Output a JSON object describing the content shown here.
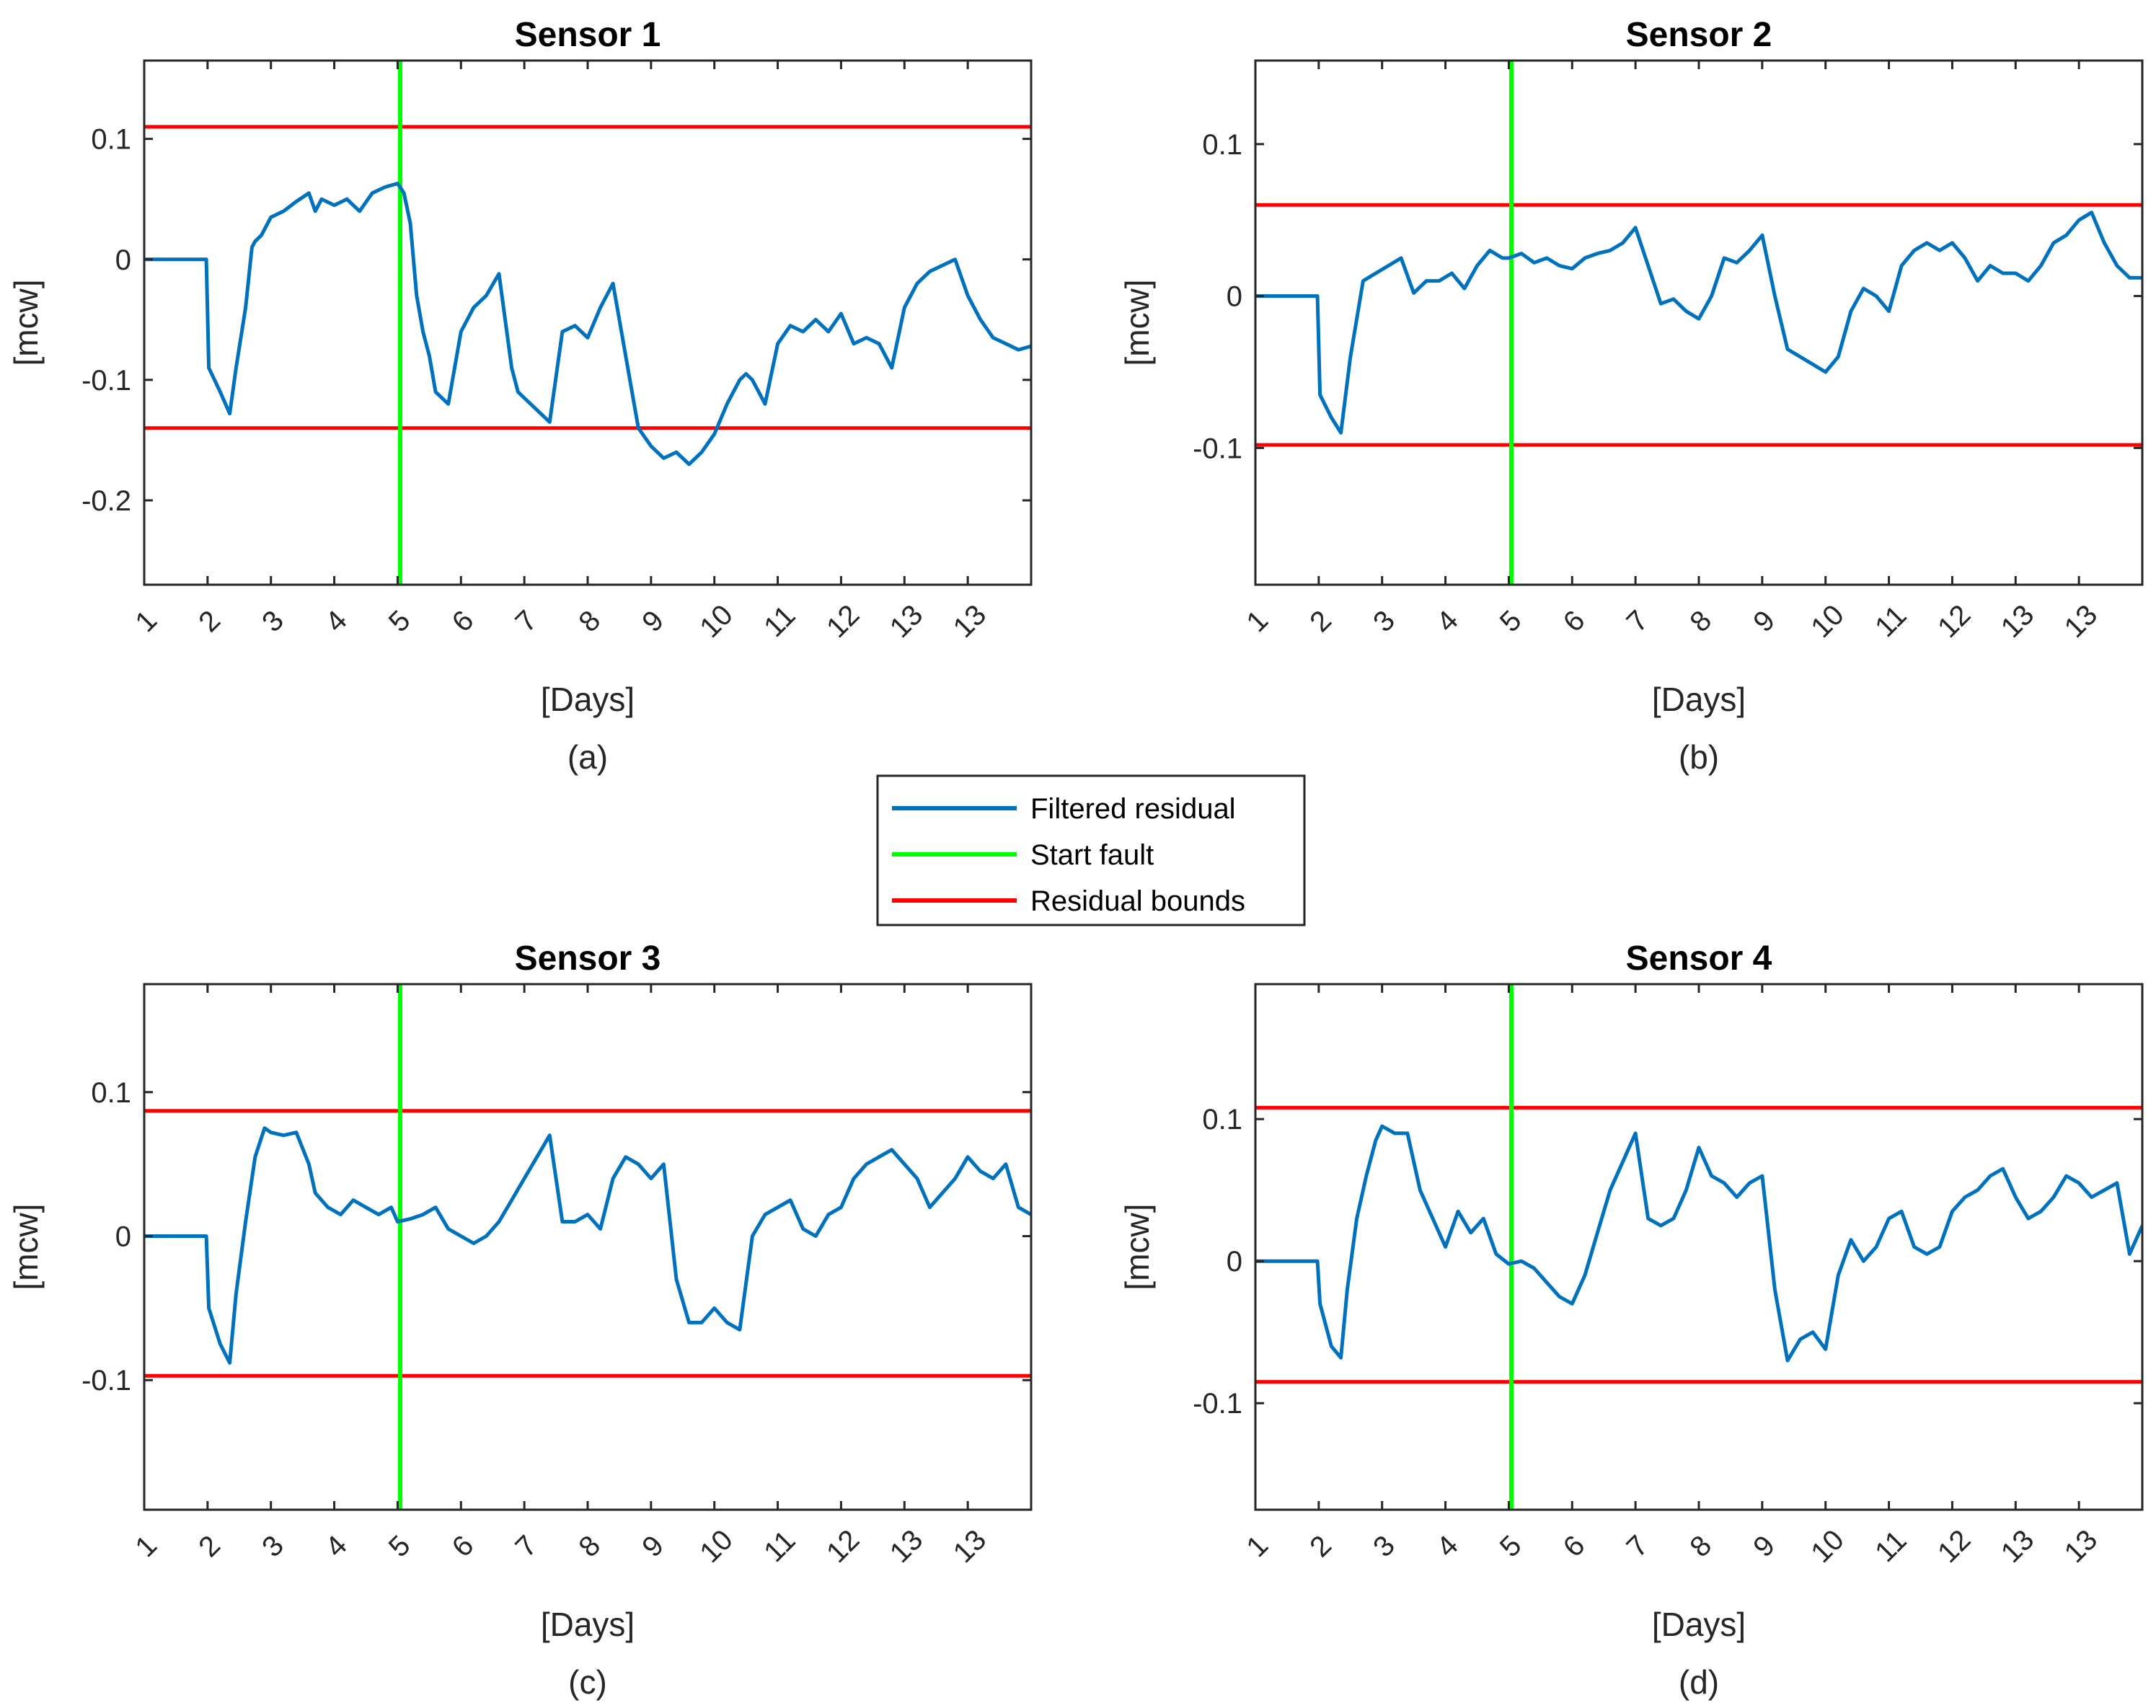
{
  "legend": {
    "entries": [
      {
        "label": "Filtered residual",
        "color": "#0072BD"
      },
      {
        "label": "Start fault",
        "color": "#00FF00"
      },
      {
        "label": "Residual bounds",
        "color": "#FF0000"
      }
    ]
  },
  "chart_data": [
    {
      "type": "line",
      "title": "Sensor 1",
      "caption": "(a)",
      "xlabel": "[Days]",
      "ylabel": "[mcw]",
      "xlim": [
        0,
        14
      ],
      "ylim": [
        -0.27,
        0.165
      ],
      "xtick_labels": [
        "1",
        "2",
        "3",
        "4",
        "5",
        "6",
        "7",
        "8",
        "9",
        "10",
        "11",
        "12",
        "13",
        "13"
      ],
      "yticks": [
        -0.2,
        -0.1,
        0,
        0.1
      ],
      "ytick_labels": [
        "-0.2",
        "-0.1",
        "0",
        "0.1"
      ],
      "fault_start_x": 4.04,
      "bounds": [
        0.11,
        -0.14
      ],
      "series": [
        {
          "name": "Filtered residual",
          "x": [
            0,
            0.98,
            1.02,
            1.2,
            1.35,
            1.45,
            1.6,
            1.7,
            1.75,
            1.85,
            2.0,
            2.2,
            2.4,
            2.6,
            2.7,
            2.8,
            3.0,
            3.2,
            3.4,
            3.6,
            3.8,
            4.0,
            4.1,
            4.2,
            4.3,
            4.4,
            4.5,
            4.6,
            4.8,
            5.0,
            5.2,
            5.4,
            5.6,
            5.8,
            5.9,
            6.0,
            6.1,
            6.2,
            6.4,
            6.6,
            6.8,
            7.0,
            7.2,
            7.4,
            7.6,
            7.8,
            8.0,
            8.2,
            8.4,
            8.6,
            8.8,
            9.0,
            9.2,
            9.3,
            9.4,
            9.5,
            9.6,
            9.7,
            9.8,
            10.0,
            10.2,
            10.4,
            10.6,
            10.8,
            11.0,
            11.2,
            11.4,
            11.6,
            11.8,
            12.0,
            12.2,
            12.4,
            12.6,
            12.8,
            13.0,
            13.2,
            13.4,
            13.6,
            13.8,
            14.0
          ],
          "y": [
            0,
            0,
            -0.09,
            -0.11,
            -0.128,
            -0.09,
            -0.04,
            0.01,
            0.015,
            0.02,
            0.035,
            0.04,
            0.048,
            0.055,
            0.04,
            0.05,
            0.045,
            0.05,
            0.04,
            0.055,
            0.06,
            0.063,
            0.055,
            0.03,
            -0.03,
            -0.06,
            -0.08,
            -0.11,
            -0.12,
            -0.06,
            -0.04,
            -0.03,
            -0.012,
            -0.09,
            -0.11,
            -0.115,
            -0.12,
            -0.125,
            -0.135,
            -0.06,
            -0.055,
            -0.065,
            -0.04,
            -0.02,
            -0.08,
            -0.14,
            -0.155,
            -0.165,
            -0.16,
            -0.17,
            -0.16,
            -0.145,
            -0.12,
            -0.11,
            -0.1,
            -0.095,
            -0.1,
            -0.11,
            -0.12,
            -0.07,
            -0.055,
            -0.06,
            -0.05,
            -0.06,
            -0.045,
            -0.07,
            -0.065,
            -0.07,
            -0.09,
            -0.04,
            -0.02,
            -0.01,
            -0.005,
            0,
            -0.03,
            -0.05,
            -0.065,
            -0.07,
            -0.075,
            -0.072
          ]
        }
      ]
    },
    {
      "type": "line",
      "title": "Sensor 2",
      "caption": "(b)",
      "xlabel": "[Days]",
      "ylabel": "[mcw]",
      "xlim": [
        0,
        14
      ],
      "ylim": [
        -0.19,
        0.155
      ],
      "xtick_labels": [
        "1",
        "2",
        "3",
        "4",
        "5",
        "6",
        "7",
        "8",
        "9",
        "10",
        "11",
        "12",
        "13",
        "13"
      ],
      "yticks": [
        -0.1,
        0,
        0.1
      ],
      "ytick_labels": [
        "-0.1",
        "0",
        "0.1"
      ],
      "fault_start_x": 4.04,
      "bounds": [
        0.06,
        -0.098
      ],
      "series": [
        {
          "name": "Filtered residual",
          "x": [
            0,
            0.98,
            1.02,
            1.2,
            1.35,
            1.5,
            1.7,
            1.9,
            2.1,
            2.3,
            2.5,
            2.7,
            2.9,
            3.1,
            3.3,
            3.5,
            3.7,
            3.9,
            4.0,
            4.2,
            4.4,
            4.6,
            4.8,
            5.0,
            5.2,
            5.4,
            5.6,
            5.8,
            6.0,
            6.2,
            6.4,
            6.6,
            6.8,
            7.0,
            7.2,
            7.4,
            7.6,
            7.8,
            8.0,
            8.2,
            8.4,
            8.6,
            8.8,
            9.0,
            9.2,
            9.4,
            9.6,
            9.8,
            10.0,
            10.2,
            10.4,
            10.6,
            10.8,
            11.0,
            11.2,
            11.4,
            11.6,
            11.8,
            12.0,
            12.2,
            12.4,
            12.6,
            12.8,
            13.0,
            13.2,
            13.4,
            13.6,
            13.8,
            14.0
          ],
          "y": [
            0,
            0,
            -0.065,
            -0.08,
            -0.09,
            -0.04,
            0.01,
            0.015,
            0.02,
            0.025,
            0.002,
            0.01,
            0.01,
            0.015,
            0.005,
            0.02,
            0.03,
            0.025,
            0.025,
            0.028,
            0.022,
            0.025,
            0.02,
            0.018,
            0.025,
            0.028,
            0.03,
            0.035,
            0.045,
            0.02,
            -0.005,
            -0.002,
            -0.01,
            -0.015,
            0.0,
            0.025,
            0.022,
            0.03,
            0.04,
            0.0,
            -0.035,
            -0.04,
            -0.045,
            -0.05,
            -0.04,
            -0.01,
            0.005,
            0.0,
            -0.01,
            0.02,
            0.03,
            0.035,
            0.03,
            0.035,
            0.025,
            0.01,
            0.02,
            0.015,
            0.015,
            0.01,
            0.02,
            0.035,
            0.04,
            0.05,
            0.055,
            0.035,
            0.02,
            0.012,
            0.012
          ]
        }
      ]
    },
    {
      "type": "line",
      "title": "Sensor 3",
      "caption": "(c)",
      "xlabel": "[Days]",
      "ylabel": "[mcw]",
      "xlim": [
        0,
        14
      ],
      "ylim": [
        -0.19,
        0.175
      ],
      "xtick_labels": [
        "1",
        "2",
        "3",
        "4",
        "5",
        "6",
        "7",
        "8",
        "9",
        "10",
        "11",
        "12",
        "13",
        "13"
      ],
      "yticks": [
        -0.1,
        0,
        0.1
      ],
      "ytick_labels": [
        "-0.1",
        "0",
        "0.1"
      ],
      "fault_start_x": 4.04,
      "bounds": [
        0.087,
        -0.097
      ],
      "series": [
        {
          "name": "Filtered residual",
          "x": [
            0,
            0.98,
            1.02,
            1.2,
            1.35,
            1.45,
            1.6,
            1.75,
            1.9,
            2.0,
            2.2,
            2.4,
            2.6,
            2.7,
            2.9,
            3.1,
            3.3,
            3.5,
            3.7,
            3.9,
            4.0,
            4.2,
            4.4,
            4.6,
            4.8,
            5.0,
            5.2,
            5.4,
            5.6,
            5.8,
            6.0,
            6.2,
            6.4,
            6.6,
            6.8,
            7.0,
            7.2,
            7.4,
            7.6,
            7.8,
            8.0,
            8.2,
            8.4,
            8.6,
            8.8,
            9.0,
            9.2,
            9.4,
            9.6,
            9.8,
            10.0,
            10.2,
            10.4,
            10.6,
            10.8,
            11.0,
            11.2,
            11.4,
            11.6,
            11.8,
            12.0,
            12.2,
            12.4,
            12.6,
            12.8,
            13.0,
            13.2,
            13.4,
            13.6,
            13.8,
            14.0
          ],
          "y": [
            0,
            0,
            -0.05,
            -0.075,
            -0.088,
            -0.04,
            0.01,
            0.055,
            0.075,
            0.072,
            0.07,
            0.072,
            0.05,
            0.03,
            0.02,
            0.015,
            0.025,
            0.02,
            0.015,
            0.02,
            0.01,
            0.012,
            0.015,
            0.02,
            0.005,
            0.0,
            -0.005,
            0.0,
            0.01,
            0.025,
            0.04,
            0.055,
            0.07,
            0.01,
            0.01,
            0.015,
            0.005,
            0.04,
            0.055,
            0.05,
            0.04,
            0.05,
            -0.03,
            -0.06,
            -0.06,
            -0.05,
            -0.06,
            -0.065,
            0.0,
            0.015,
            0.02,
            0.025,
            0.005,
            0.0,
            0.015,
            0.02,
            0.04,
            0.05,
            0.055,
            0.06,
            0.05,
            0.04,
            0.02,
            0.03,
            0.04,
            0.055,
            0.045,
            0.04,
            0.05,
            0.02,
            0.015
          ]
        }
      ]
    },
    {
      "type": "line",
      "title": "Sensor 4",
      "caption": "(d)",
      "xlabel": "[Days]",
      "ylabel": "[mcw]",
      "xlim": [
        0,
        14
      ],
      "ylim": [
        -0.175,
        0.195
      ],
      "xtick_labels": [
        "1",
        "2",
        "3",
        "4",
        "5",
        "6",
        "7",
        "8",
        "9",
        "10",
        "11",
        "12",
        "13",
        "13"
      ],
      "yticks": [
        -0.1,
        0,
        0.1
      ],
      "ytick_labels": [
        "-0.1",
        "0",
        "0.1"
      ],
      "fault_start_x": 4.04,
      "bounds": [
        0.108,
        -0.085
      ],
      "series": [
        {
          "name": "Filtered residual",
          "x": [
            0,
            0.98,
            1.02,
            1.2,
            1.35,
            1.45,
            1.6,
            1.75,
            1.9,
            2.0,
            2.2,
            2.4,
            2.6,
            2.8,
            3.0,
            3.2,
            3.4,
            3.6,
            3.8,
            4.0,
            4.2,
            4.4,
            4.6,
            4.8,
            5.0,
            5.2,
            5.4,
            5.6,
            5.8,
            6.0,
            6.2,
            6.4,
            6.6,
            6.8,
            7.0,
            7.2,
            7.4,
            7.6,
            7.8,
            8.0,
            8.2,
            8.4,
            8.6,
            8.8,
            9.0,
            9.2,
            9.4,
            9.6,
            9.8,
            10.0,
            10.2,
            10.4,
            10.6,
            10.8,
            11.0,
            11.2,
            11.4,
            11.6,
            11.8,
            12.0,
            12.2,
            12.4,
            12.6,
            12.8,
            13.0,
            13.2,
            13.4,
            13.6,
            13.8,
            14.0
          ],
          "y": [
            0,
            0,
            -0.03,
            -0.06,
            -0.068,
            -0.02,
            0.03,
            0.06,
            0.085,
            0.095,
            0.09,
            0.09,
            0.05,
            0.03,
            0.01,
            0.035,
            0.02,
            0.03,
            0.005,
            -0.002,
            0.0,
            -0.005,
            -0.015,
            -0.025,
            -0.03,
            -0.01,
            0.02,
            0.05,
            0.07,
            0.09,
            0.03,
            0.025,
            0.03,
            0.05,
            0.08,
            0.06,
            0.055,
            0.045,
            0.055,
            0.06,
            -0.02,
            -0.07,
            -0.055,
            -0.05,
            -0.062,
            -0.01,
            0.015,
            0.0,
            0.01,
            0.03,
            0.035,
            0.01,
            0.005,
            0.01,
            0.035,
            0.045,
            0.05,
            0.06,
            0.065,
            0.045,
            0.03,
            0.035,
            0.045,
            0.06,
            0.055,
            0.045,
            0.05,
            0.055,
            0.005,
            0.025
          ]
        }
      ]
    }
  ]
}
